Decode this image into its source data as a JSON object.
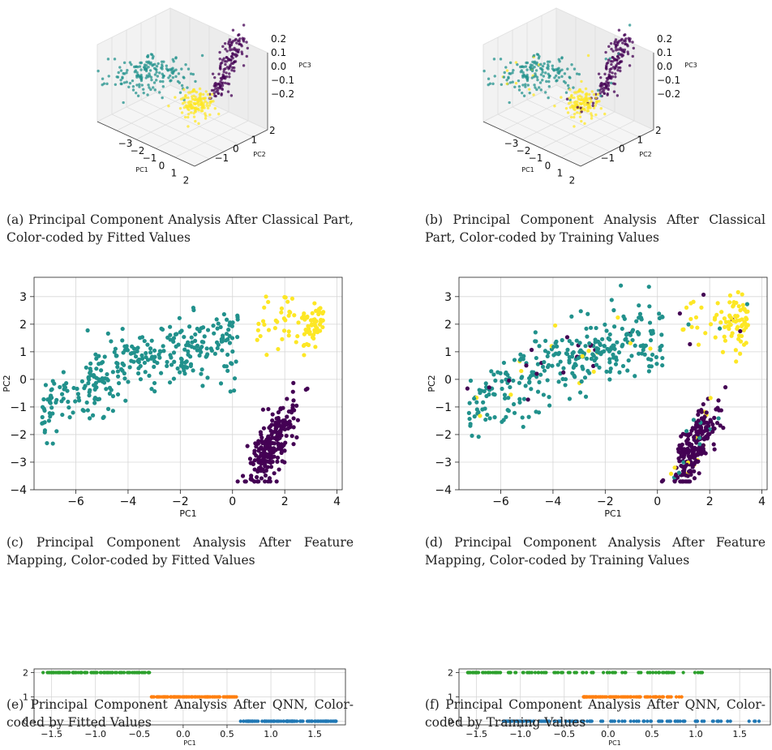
{
  "colors": {
    "viridis_dark": "#440154",
    "viridis_mid": "#21918c",
    "viridis_yellow": "#fde725",
    "tab_blue": "#1f77b4",
    "tab_orange": "#ff7f0e",
    "tab_green": "#2ca02c",
    "grid": "#d6d6d6"
  },
  "panels": [
    {
      "caption": "(a) Principal Component Analysis After Classical Part, Color-coded by Fitted Values",
      "chart": {
        "type": "scatter",
        "projection": "3d",
        "xlabel": "PC1",
        "ylabel": "PC2",
        "zlabel": "PC3",
        "xticks": [
          "−3",
          "−2",
          "−1",
          "0",
          "1",
          "2"
        ],
        "yticks": [
          "−1",
          "0",
          "1",
          "2"
        ],
        "zticks": [
          "0.2",
          "0.1",
          "0.0",
          "−0.1",
          "−0.2"
        ],
        "color_mode": "fitted"
      }
    },
    {
      "caption": "(b) Principal Component Analysis After Classical Part, Color-coded by Training Values",
      "chart": {
        "type": "scatter",
        "projection": "3d",
        "xlabel": "PC1",
        "ylabel": "PC2",
        "zlabel": "PC3",
        "xticks": [
          "−3",
          "−2",
          "−1",
          "0",
          "1",
          "2"
        ],
        "yticks": [
          "−1",
          "0",
          "1",
          "2"
        ],
        "zticks": [
          "0.2",
          "0.1",
          "0.0",
          "−0.1",
          "−0.2"
        ],
        "color_mode": "training"
      }
    },
    {
      "caption": "(c) Principal Component Analysis After Feature Mapping, Color-coded by Fitted Values",
      "chart": {
        "type": "scatter",
        "xlabel": "PC1",
        "ylabel": "PC2",
        "xlim": [
          -7.6,
          4.2
        ],
        "ylim": [
          -4,
          3.7
        ],
        "xticks": [
          -6,
          -4,
          -2,
          0,
          2,
          4
        ],
        "xtick_labels": [
          "−6",
          "−4",
          "−2",
          "0",
          "2",
          "4"
        ],
        "yticks": [
          -4,
          -3,
          -2,
          -1,
          0,
          1,
          2,
          3
        ],
        "ytick_labels": [
          "−4",
          "−3",
          "−2",
          "−1",
          "0",
          "1",
          "2",
          "3"
        ],
        "grid": true,
        "color_mode": "fitted",
        "clusters": [
          {
            "class": 0,
            "center": [
              1.5,
              -2.3
            ],
            "spread": [
              0.5,
              0.7
            ],
            "count": 230
          },
          {
            "class": 1,
            "center": [
              -3.5,
              0.4
            ],
            "spread": [
              2.0,
              1.2
            ],
            "count": 330
          },
          {
            "class": 2,
            "center": [
              2.5,
              2.2
            ],
            "spread": [
              0.9,
              0.7
            ],
            "count": 90
          }
        ]
      }
    },
    {
      "caption": "(d) Principal Component Analysis After Feature Mapping, Color-coded by Training Values",
      "chart": {
        "type": "scatter",
        "xlabel": "PC1",
        "ylabel": "PC2",
        "xlim": [
          -7.6,
          4.2
        ],
        "ylim": [
          -4,
          3.7
        ],
        "xticks": [
          -6,
          -4,
          -2,
          0,
          2,
          4
        ],
        "xtick_labels": [
          "−6",
          "−4",
          "−2",
          "0",
          "2",
          "4"
        ],
        "yticks": [
          -4,
          -3,
          -2,
          -1,
          0,
          1,
          2,
          3
        ],
        "ytick_labels": [
          "−4",
          "−3",
          "−2",
          "−1",
          "0",
          "1",
          "2",
          "3"
        ],
        "grid": true,
        "color_mode": "training",
        "clusters": [
          {
            "class": 0,
            "center": [
              1.5,
              -2.3
            ],
            "spread": [
              0.5,
              0.7
            ],
            "count": 230
          },
          {
            "class": 1,
            "center": [
              -3.5,
              0.4
            ],
            "spread": [
              2.0,
              1.2
            ],
            "count": 330
          },
          {
            "class": 2,
            "center": [
              2.5,
              2.2
            ],
            "spread": [
              0.9,
              0.7
            ],
            "count": 90
          }
        ]
      }
    },
    {
      "caption": "(e) Principal Component Analysis After QNN, Color-coded by Fitted Values",
      "chart": {
        "type": "scatter",
        "xlabel": "PC1",
        "xlim": [
          -1.7,
          1.85
        ],
        "ylim": [
          -0.15,
          2.15
        ],
        "xticks": [
          -1.5,
          -1.0,
          -0.5,
          0.0,
          0.5,
          1.0,
          1.5
        ],
        "xtick_labels": [
          "−1.5",
          "−1.0",
          "−0.5",
          "0.0",
          "0.5",
          "1.0",
          "1.5"
        ],
        "yticks": [
          0,
          1,
          2
        ],
        "ytick_labels": [
          "0",
          "1",
          "2"
        ],
        "grid": true,
        "color_mode": "fitted",
        "strips": [
          {
            "y": 2,
            "color": "tab_green",
            "x_range": [
              -1.6,
              -0.37
            ]
          },
          {
            "y": 1,
            "color": "tab_orange",
            "x_range": [
              -0.37,
              0.62
            ]
          },
          {
            "y": 0,
            "color": "tab_blue",
            "x_range": [
              0.65,
              1.75
            ]
          }
        ]
      }
    },
    {
      "caption": "(f) Principal Component Analysis After QNN, Color-coded by Training Values",
      "chart": {
        "type": "scatter",
        "xlabel": "PC1",
        "xlim": [
          -1.7,
          1.85
        ],
        "ylim": [
          -0.15,
          2.15
        ],
        "xticks": [
          -1.5,
          -1.0,
          -0.5,
          0.0,
          0.5,
          1.0,
          1.5
        ],
        "xtick_labels": [
          "−1.5",
          "−1.0",
          "−0.5",
          "0.0",
          "0.5",
          "1.0",
          "1.5"
        ],
        "yticks": [
          0,
          1,
          2
        ],
        "ytick_labels": [
          "0",
          "1",
          "2"
        ],
        "grid": true,
        "color_mode": "training",
        "strips": [
          {
            "y": 2,
            "color": "tab_green",
            "x_range": [
              -1.6,
              1.12
            ]
          },
          {
            "y": 1,
            "color": "tab_orange",
            "x_range": [
              -0.28,
              0.85
            ]
          },
          {
            "y": 0,
            "color": "tab_blue",
            "x_range": [
              -1.2,
              1.75
            ]
          }
        ]
      }
    }
  ]
}
